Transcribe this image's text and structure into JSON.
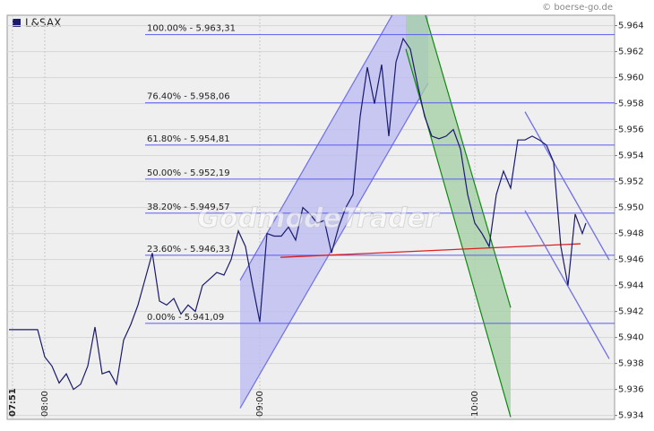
{
  "chart_data": {
    "type": "line",
    "copyright": "© boerse-go.de",
    "watermark": "GodmodeTrader",
    "xlim": [
      469.5,
      639
    ],
    "ylim": [
      5.9337,
      5.9648
    ],
    "xticks": [
      {
        "value": 471,
        "label": "07:51"
      },
      {
        "value": 480,
        "label": "08:00"
      },
      {
        "value": 540,
        "label": "09:00"
      },
      {
        "value": 600,
        "label": "10:00"
      }
    ],
    "yticks": [
      5.934,
      5.936,
      5.938,
      {
        "value": 5.94,
        "label": "5.940"
      },
      5.942,
      5.944,
      5.946,
      5.948,
      {
        "value": 5.95,
        "label": "5.950"
      },
      5.952,
      5.954,
      5.956,
      5.958,
      {
        "value": 5.96,
        "label": "5.960"
      },
      5.962,
      5.964
    ],
    "grid": true,
    "series": [
      {
        "name": "L&SAX",
        "color": "#1a1a6e",
        "x": [
          470,
          478,
          480,
          482,
          484,
          486,
          488,
          490,
          492,
          494,
          496,
          498,
          500,
          502,
          504,
          506,
          508,
          510,
          512,
          514,
          516,
          518,
          520,
          522,
          524,
          526,
          528,
          530,
          532,
          534,
          536,
          538,
          540,
          542,
          544,
          546,
          548,
          550,
          552,
          554,
          556,
          558,
          560,
          562,
          564,
          566,
          568,
          570,
          572,
          574,
          576,
          578,
          580,
          582,
          584,
          586,
          588,
          590,
          592,
          594,
          596,
          598,
          600,
          602,
          604,
          606,
          608,
          610,
          612,
          614,
          616,
          618,
          620,
          622,
          624,
          626,
          628,
          630,
          631
        ],
        "values": [
          5.9406,
          5.9406,
          5.9385,
          5.9378,
          5.9365,
          5.9372,
          5.936,
          5.9364,
          5.9378,
          5.9408,
          5.9372,
          5.9374,
          5.9364,
          5.9398,
          5.941,
          5.9425,
          5.9445,
          5.9465,
          5.9428,
          5.9425,
          5.943,
          5.9418,
          5.9425,
          5.942,
          5.944,
          5.9445,
          5.945,
          5.9448,
          5.946,
          5.9482,
          5.947,
          5.944,
          5.9412,
          5.948,
          5.9478,
          5.9478,
          5.9485,
          5.9475,
          5.95,
          5.9495,
          5.9488,
          5.949,
          5.9465,
          5.9485,
          5.95,
          5.951,
          5.957,
          5.9608,
          5.958,
          5.961,
          5.9555,
          5.9612,
          5.963,
          5.9622,
          5.9595,
          5.957,
          5.9555,
          5.9553,
          5.9555,
          5.956,
          5.9545,
          5.951,
          5.9488,
          5.948,
          5.947,
          5.951,
          5.9528,
          5.9515,
          5.9552,
          5.9552,
          5.9555,
          5.9552,
          5.9548,
          5.9535,
          5.947,
          5.944,
          5.9495,
          5.948,
          5.9488
        ]
      }
    ],
    "fib_levels": [
      {
        "label": "100.00% - 5.963,31",
        "value": 5.96331
      },
      {
        "label": "76.40% - 5.958,06",
        "value": 5.95806
      },
      {
        "label": "61.80% - 5.954,81",
        "value": 5.95481
      },
      {
        "label": "50.00% - 5.952,19",
        "value": 5.95219
      },
      {
        "label": "38.20% - 5.949,57",
        "value": 5.94957
      },
      {
        "label": "23.60% - 5.946,33",
        "value": 5.94633
      },
      {
        "label": "0.00% - 5.941,09",
        "value": 5.94109
      }
    ],
    "fib_start_x": 508,
    "fib_color": "#5b5bef",
    "channels": [
      {
        "color": "#6f6fe8",
        "fill": "#b9b9f2",
        "upper": {
          "x": [
            534.5,
            587
          ],
          "y": [
            5.9444,
            5.96965
          ]
        },
        "lower": {
          "x": [
            534.5,
            587
          ],
          "y": [
            5.93456,
            5.95958
          ]
        }
      },
      {
        "color": "#118811",
        "fill": "#a3cfa3",
        "upper": {
          "x": [
            580.75,
            610
          ],
          "y": [
            5.97001,
            5.9423
          ]
        },
        "lower": {
          "x": [
            580.75,
            610
          ],
          "y": [
            5.9622,
            5.93387
          ]
        }
      }
    ],
    "trendlines": [
      {
        "color": "#dd2020",
        "x": [
          545.75,
          629.5
        ],
        "y": [
          5.94617,
          5.94721
        ]
      },
      {
        "color": "#6f6fe8",
        "x": [
          614,
          637.5
        ],
        "y": [
          5.95737,
          5.94596
        ]
      },
      {
        "color": "#6f6fe8",
        "x": [
          614,
          637.5
        ],
        "y": [
          5.94976,
          5.93836
        ]
      }
    ]
  }
}
